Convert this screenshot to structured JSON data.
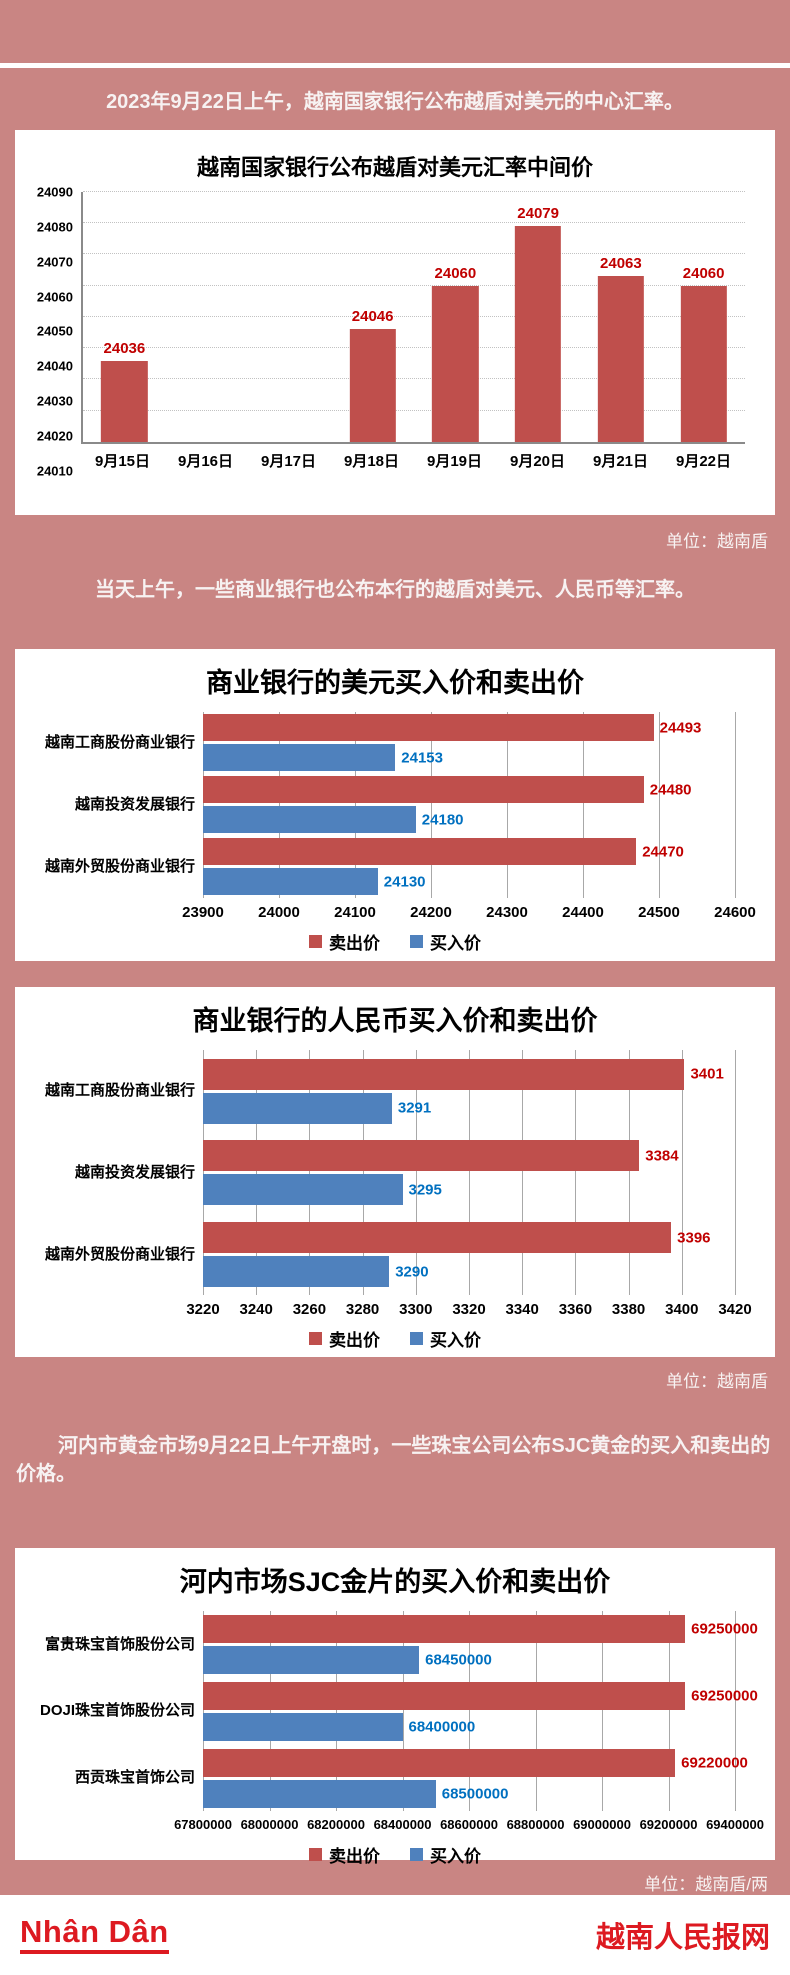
{
  "page": {
    "intro1": "2023年9月22日上午，越南国家银行公布越盾对美元的中心汇率。",
    "intro2": "当天上午，一些商业银行也公布本行的越盾对美元、人民币等汇率。",
    "intro3": "河内市黄金市场9月22日上午开盘时，一些珠宝公司公布SJC黄金的买入和卖出的价格。",
    "unit1": "单位：越南盾",
    "unit2": "单位：越南盾",
    "unit3": "单位：越南盾/两"
  },
  "footer": {
    "logo": "Nhân Dân",
    "site_name": "越南人民报网"
  },
  "colors": {
    "page_bg": "#c98583",
    "sell_bar": "#bf4f4c",
    "buy_bar": "#4f81bd",
    "sell_label": "#c00000",
    "buy_label": "#0070c0",
    "brand_red": "#dd1a21"
  },
  "chart_data": [
    {
      "type": "bar",
      "title": "越南国家银行公布越盾对美元汇率中间价",
      "categories": [
        "9月15日",
        "9月16日",
        "9月17日",
        "9月18日",
        "9月19日",
        "9月20日",
        "9月21日",
        "9月22日"
      ],
      "values": [
        24036,
        null,
        null,
        24046,
        24060,
        24079,
        24063,
        24060
      ],
      "ylim": [
        24010,
        24090
      ],
      "yticks": [
        24010,
        24020,
        24030,
        24040,
        24050,
        24060,
        24070,
        24080,
        24090
      ],
      "grid": true,
      "bar_color": "sell",
      "value_label_color": "sell_label",
      "legend_position": "none"
    },
    {
      "type": "bar-horizontal",
      "title": "商业银行的美元买入价和卖出价",
      "categories": [
        "越南工商股份商业银行",
        "越南投资发展银行",
        "越南外贸股份商业银行"
      ],
      "series": [
        {
          "name": "卖出价",
          "color": "sell",
          "values": [
            24493,
            24480,
            24470
          ]
        },
        {
          "name": "买入价",
          "color": "buy",
          "values": [
            24153,
            24180,
            24130
          ]
        }
      ],
      "xlim": [
        23900,
        24600
      ],
      "xticks": [
        23900,
        24000,
        24100,
        24200,
        24300,
        24400,
        24500,
        24600
      ],
      "grid": true,
      "legend_position": "bottom"
    },
    {
      "type": "bar-horizontal",
      "title": "商业银行的人民币买入价和卖出价",
      "categories": [
        "越南工商股份商业银行",
        "越南投资发展银行",
        "越南外贸股份商业银行"
      ],
      "series": [
        {
          "name": "卖出价",
          "color": "sell",
          "values": [
            3401,
            3384,
            3396
          ]
        },
        {
          "name": "买入价",
          "color": "buy",
          "values": [
            3291,
            3295,
            3290
          ]
        }
      ],
      "xlim": [
        3220,
        3420
      ],
      "xticks": [
        3220,
        3240,
        3260,
        3280,
        3300,
        3320,
        3340,
        3360,
        3380,
        3400,
        3420
      ],
      "grid": true,
      "legend_position": "bottom"
    },
    {
      "type": "bar-horizontal",
      "title": "河内市场SJC金片的买入价和卖出价",
      "categories": [
        "富贵珠宝首饰股份公司",
        "DOJI珠宝首饰股份公司",
        "西贡珠宝首饰公司"
      ],
      "series": [
        {
          "name": "卖出价",
          "color": "sell",
          "values": [
            69250000,
            69250000,
            69220000
          ]
        },
        {
          "name": "买入价",
          "color": "buy",
          "values": [
            68450000,
            68400000,
            68500000
          ]
        }
      ],
      "xlim": [
        67800000,
        69400000
      ],
      "xticks": [
        67800000,
        68000000,
        68200000,
        68400000,
        68600000,
        68800000,
        69000000,
        69200000,
        69400000
      ],
      "grid": true,
      "legend_position": "bottom"
    }
  ]
}
